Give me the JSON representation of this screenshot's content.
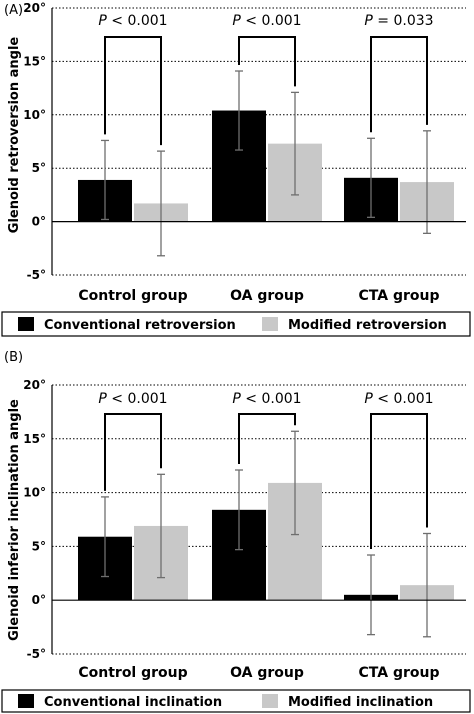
{
  "chart_data": [
    {
      "panel": "(A)",
      "type": "bar",
      "ylabel": "Glenoid retroversion angle",
      "ylim": [
        -5,
        20
      ],
      "yticks": [
        "-5°",
        "0°",
        "5°",
        "10°",
        "15°",
        "20°"
      ],
      "ytick_values": [
        -5,
        0,
        5,
        10,
        15,
        20
      ],
      "grid": "horizontal dotted",
      "categories": [
        "Control group",
        "OA group",
        "CTA group"
      ],
      "series": [
        {
          "name": "Conventional retroversion",
          "color": "#000000",
          "values": [
            3.9,
            10.4,
            4.1
          ],
          "errors": [
            3.7,
            3.7,
            3.7
          ]
        },
        {
          "name": "Modified retroversion",
          "color": "#c8c8c8",
          "values": [
            1.7,
            7.3,
            3.7
          ],
          "errors": [
            4.9,
            4.8,
            4.8
          ]
        }
      ],
      "brackets": [
        {
          "label": "P < 0.001",
          "italic": "P",
          "rest": " < 0.001"
        },
        {
          "label": "P < 0.001",
          "italic": "P",
          "rest": " < 0.001"
        },
        {
          "label": "P = 0.033",
          "italic": "P",
          "rest": " = 0.033"
        }
      ],
      "legend_placement": "bottom"
    },
    {
      "panel": "(B)",
      "type": "bar",
      "ylabel": "Glenoid inferior inclination angle",
      "ylim": [
        -5,
        20
      ],
      "yticks": [
        "-5°",
        "0°",
        "5°",
        "10°",
        "15°",
        "20°"
      ],
      "ytick_values": [
        -5,
        0,
        5,
        10,
        15,
        20
      ],
      "grid": "horizontal dotted",
      "categories": [
        "Control group",
        "OA group",
        "CTA group"
      ],
      "series": [
        {
          "name": "Conventional inclination",
          "color": "#000000",
          "values": [
            5.9,
            8.4,
            0.5
          ],
          "errors": [
            3.7,
            3.7,
            3.7
          ]
        },
        {
          "name": "Modified inclination",
          "color": "#c8c8c8",
          "values": [
            6.9,
            10.9,
            1.4
          ],
          "errors": [
            4.8,
            4.8,
            4.8
          ]
        }
      ],
      "brackets": [
        {
          "label": "P < 0.001",
          "italic": "P",
          "rest": " < 0.001"
        },
        {
          "label": "P < 0.001",
          "italic": "P",
          "rest": " < 0.001"
        },
        {
          "label": "P < 0.001",
          "italic": "P",
          "rest": " < 0.001"
        }
      ],
      "legend_placement": "bottom"
    }
  ]
}
